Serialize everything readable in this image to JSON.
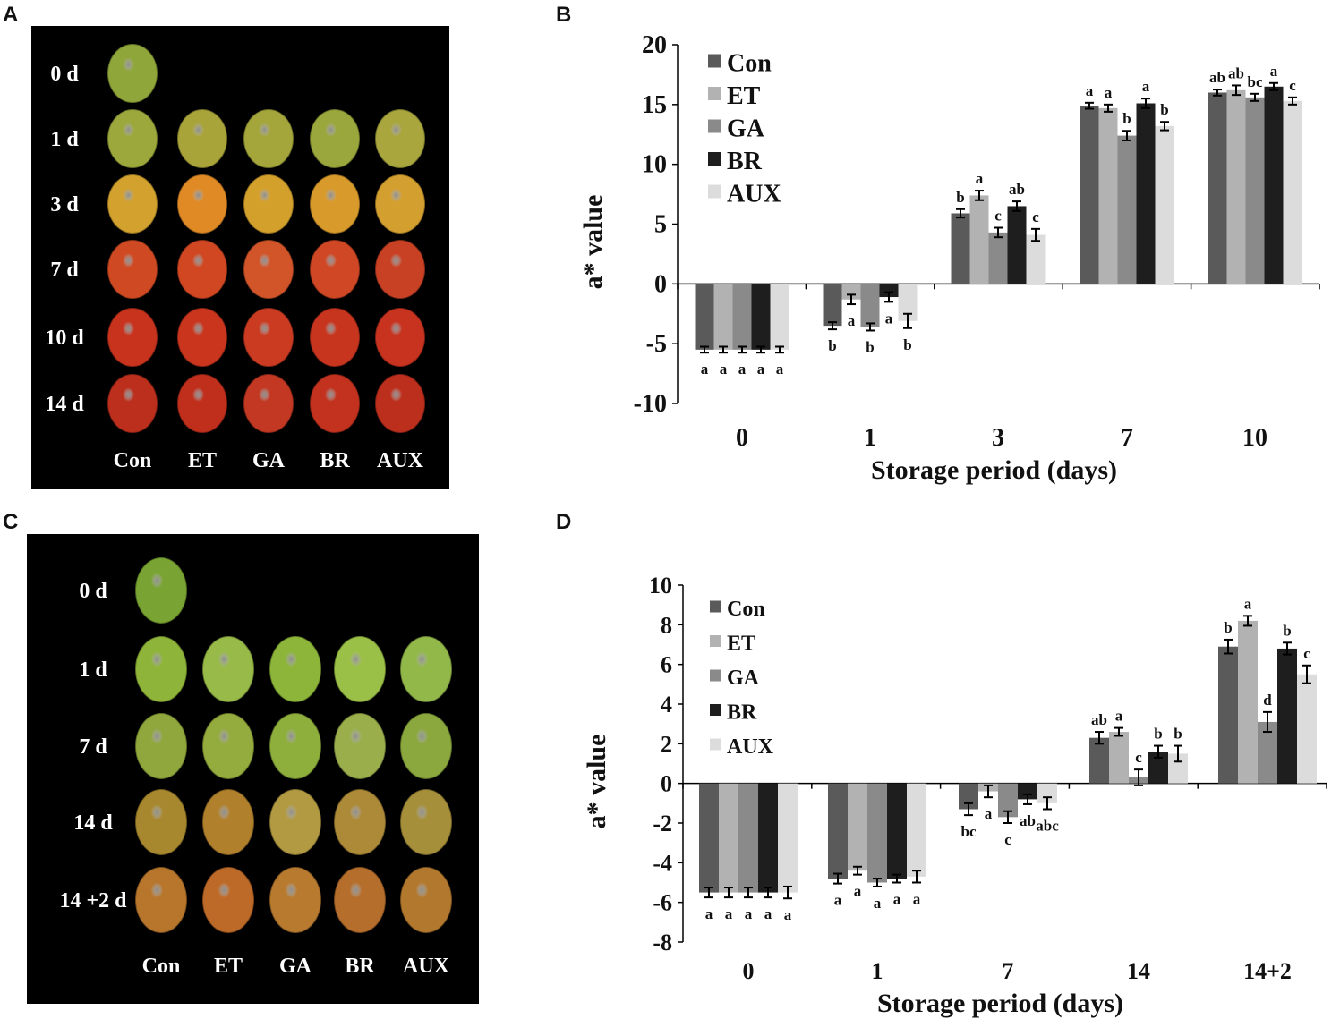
{
  "panels": {
    "a": "A",
    "b": "B",
    "c": "C",
    "d": "D"
  },
  "photo_a": {
    "rows": [
      "0 d",
      "1 d",
      "3 d",
      "7 d",
      "10 d",
      "14 d"
    ],
    "cols": [
      "Con",
      "ET",
      "GA",
      "BR",
      "AUX"
    ],
    "fruit_colors": [
      [
        "#8fa63a"
      ],
      [
        "#9ca83c",
        "#a9a43a",
        "#a4a63c",
        "#9aa73c",
        "#a9a63e"
      ],
      [
        "#d2a12e",
        "#e08a26",
        "#d4a02c",
        "#d99a2c",
        "#d3a030"
      ],
      [
        "#cf4a22",
        "#d04722",
        "#d2552a",
        "#cf4724",
        "#c94124"
      ],
      [
        "#c8331e",
        "#c9351d",
        "#cb3b22",
        "#c8351f",
        "#c83320"
      ],
      [
        "#bc2f1d",
        "#bf2f1c",
        "#c23822",
        "#c2321e",
        "#bd2f1d"
      ]
    ]
  },
  "photo_c": {
    "rows": [
      "0 d",
      "1 d",
      "7 d",
      "14 d",
      "14 +2 d"
    ],
    "cols": [
      "Con",
      "ET",
      "GA",
      "BR",
      "AUX"
    ],
    "fruit_colors": [
      [
        "#79a332"
      ],
      [
        "#8fb43a",
        "#98ba48",
        "#8cb53a",
        "#9bc047",
        "#93b84a"
      ],
      [
        "#8fa73c",
        "#94ab3d",
        "#8eaf3c",
        "#9aaf4c",
        "#8aa83d"
      ],
      [
        "#a8882e",
        "#b0802d",
        "#b29a42",
        "#ad8a38",
        "#a68f3a"
      ],
      [
        "#b7762c",
        "#bd6a29",
        "#b77a2e",
        "#b56e2c",
        "#b2792e"
      ]
    ]
  },
  "chart_data": [
    {
      "type": "bar",
      "title": "",
      "xlabel": "Storage period (days)",
      "ylabel": "a* value",
      "ylim": [
        -10,
        20
      ],
      "yticks": [
        -10,
        -5,
        0,
        5,
        10,
        15,
        20
      ],
      "legend_position": "top-left",
      "categories": [
        "0",
        "1",
        "3",
        "7",
        "10"
      ],
      "series": [
        {
          "name": "Con",
          "color": "#5a5a5a",
          "values": [
            -5.5,
            -3.5,
            5.9,
            14.9,
            16.0
          ],
          "errors": [
            0.25,
            0.3,
            0.35,
            0.25,
            0.25
          ],
          "labels": [
            "a",
            "b",
            "b",
            "a",
            "ab"
          ]
        },
        {
          "name": "ET",
          "color": "#b2b2b2",
          "values": [
            -5.5,
            -1.3,
            7.4,
            14.7,
            16.2
          ],
          "errors": [
            0.25,
            0.4,
            0.4,
            0.3,
            0.4
          ],
          "labels": [
            "a",
            "a",
            "a",
            "a",
            "ab"
          ]
        },
        {
          "name": "GA",
          "color": "#8a8a8a",
          "values": [
            -5.5,
            -3.6,
            4.3,
            12.4,
            15.6
          ],
          "errors": [
            0.25,
            0.3,
            0.4,
            0.4,
            0.3
          ],
          "labels": [
            "a",
            "b",
            "c",
            "b",
            "bc"
          ]
        },
        {
          "name": "BR",
          "color": "#1e1e1e",
          "values": [
            -5.5,
            -1.1,
            6.5,
            15.1,
            16.5
          ],
          "errors": [
            0.25,
            0.4,
            0.4,
            0.4,
            0.3
          ],
          "labels": [
            "a",
            "a",
            "ab",
            "a",
            "a"
          ]
        },
        {
          "name": "AUX",
          "color": "#dcdcdc",
          "values": [
            -5.5,
            -3.1,
            4.1,
            13.2,
            15.3
          ],
          "errors": [
            0.25,
            0.6,
            0.5,
            0.35,
            0.3
          ],
          "labels": [
            "a",
            "b",
            "c",
            "b",
            "c"
          ]
        }
      ]
    },
    {
      "type": "bar",
      "title": "",
      "xlabel": "Storage period (days)",
      "ylabel": "a* value",
      "ylim": [
        -8,
        10
      ],
      "yticks": [
        -8,
        -6,
        -4,
        -2,
        0,
        2,
        4,
        6,
        8,
        10
      ],
      "legend_position": "top-left",
      "categories": [
        "0",
        "1",
        "7",
        "14",
        "14+2"
      ],
      "series": [
        {
          "name": "Con",
          "color": "#5a5a5a",
          "values": [
            -5.5,
            -4.8,
            -1.3,
            2.3,
            6.9
          ],
          "errors": [
            0.25,
            0.25,
            0.3,
            0.3,
            0.35
          ],
          "labels": [
            "a",
            "a",
            "bc",
            "ab",
            "b"
          ]
        },
        {
          "name": "ET",
          "color": "#b2b2b2",
          "values": [
            -5.5,
            -4.4,
            -0.4,
            2.6,
            8.2
          ],
          "errors": [
            0.25,
            0.2,
            0.3,
            0.2,
            0.25
          ],
          "labels": [
            "a",
            "a",
            "a",
            "a",
            "a"
          ]
        },
        {
          "name": "GA",
          "color": "#8a8a8a",
          "values": [
            -5.5,
            -5.0,
            -1.7,
            0.3,
            3.1
          ],
          "errors": [
            0.25,
            0.2,
            0.3,
            0.4,
            0.5
          ],
          "labels": [
            "a",
            "a",
            "c",
            "c",
            "d"
          ]
        },
        {
          "name": "BR",
          "color": "#1e1e1e",
          "values": [
            -5.5,
            -4.8,
            -0.8,
            1.6,
            6.8
          ],
          "errors": [
            0.25,
            0.2,
            0.25,
            0.3,
            0.3
          ],
          "labels": [
            "a",
            "a",
            "ab",
            "b",
            "b"
          ]
        },
        {
          "name": "AUX",
          "color": "#dcdcdc",
          "values": [
            -5.5,
            -4.7,
            -1.0,
            1.5,
            5.5
          ],
          "errors": [
            0.3,
            0.3,
            0.3,
            0.4,
            0.45
          ],
          "labels": [
            "a",
            "a",
            "abc",
            "b",
            "c"
          ]
        }
      ]
    }
  ]
}
